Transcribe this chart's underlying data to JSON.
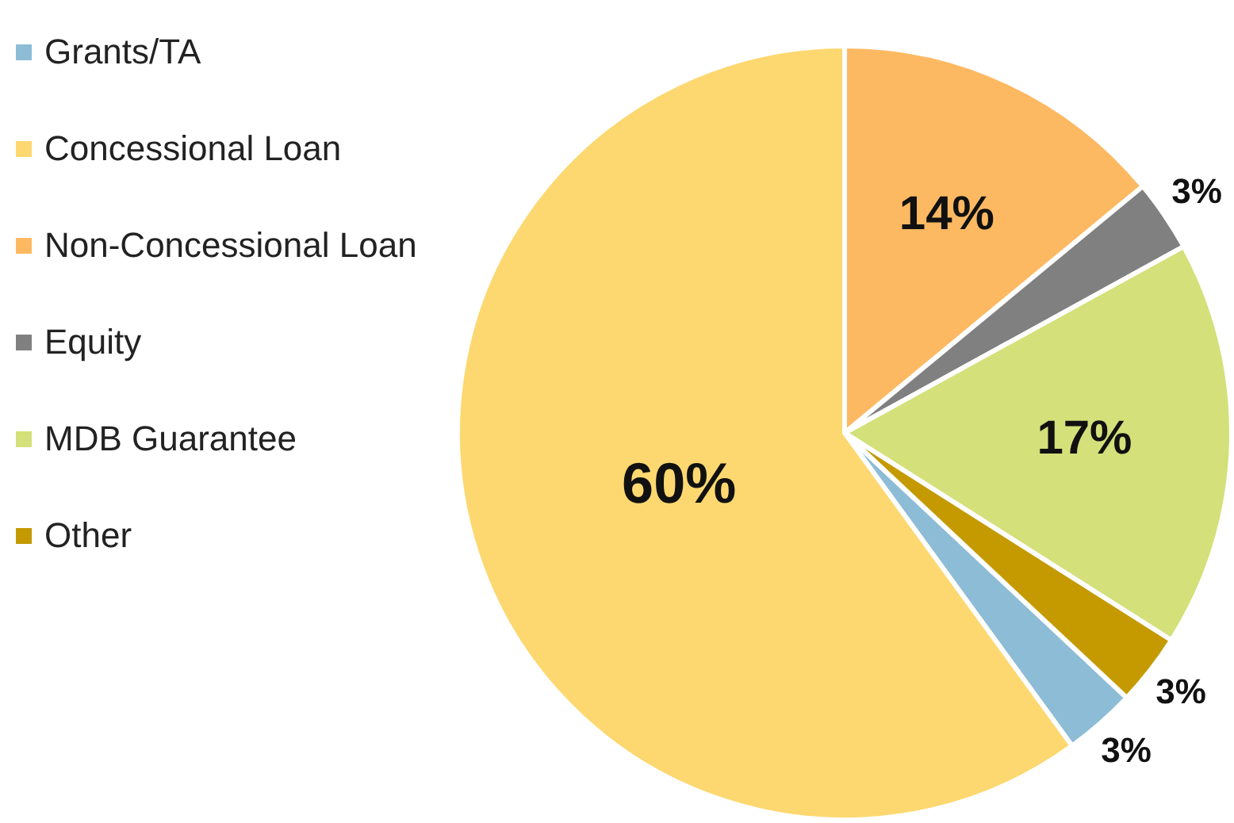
{
  "chart_data": {
    "type": "pie",
    "categories": [
      "Grants/TA",
      "Concessional Loan",
      "Non-Concessional Loan",
      "Equity",
      "MDB Guarantee",
      "Other"
    ],
    "values": [
      3,
      60,
      14,
      3,
      17,
      3
    ],
    "colors": [
      "#8dbcd6",
      "#fdd870",
      "#fdb962",
      "#808080",
      "#d4e079",
      "#c49a00"
    ],
    "value_labels": [
      "3%",
      "60%",
      "14%",
      "3%",
      "17%",
      "3%"
    ],
    "legend": "top left"
  }
}
